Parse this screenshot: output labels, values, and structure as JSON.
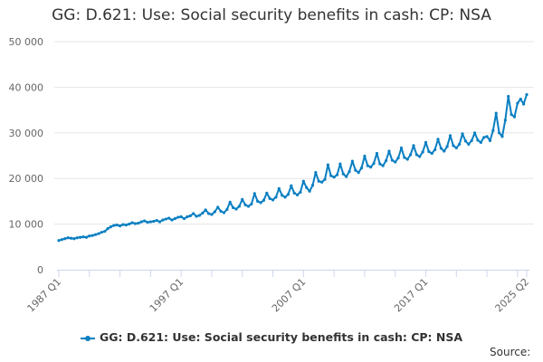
{
  "chart_data": {
    "type": "line",
    "title": "GG: D.621: Use: Social security benefits in cash: CP: NSA",
    "xlabel": "",
    "ylabel": "",
    "ylim": [
      0,
      50000
    ],
    "yticks": [
      "0",
      "10 000",
      "20 000",
      "30 000",
      "40 000",
      "50 000"
    ],
    "ytick_values": [
      0,
      10000,
      20000,
      30000,
      40000,
      50000
    ],
    "xtick_labels": [
      "1987 Q1",
      "1997 Q1",
      "2007 Q1",
      "2017 Q1",
      "2025 Q2"
    ],
    "x_start": "1987 Q1",
    "x_end": "2025 Q2",
    "grid": true,
    "legend_position": "bottom",
    "color": "#0a7fc2",
    "series": [
      {
        "name": "GG: D.621: Use: Social security benefits in cash: CP: NSA",
        "values": [
          6400,
          6600,
          6800,
          7000,
          6900,
          6800,
          7000,
          7100,
          7200,
          7100,
          7400,
          7500,
          7700,
          7900,
          8200,
          8400,
          9000,
          9400,
          9700,
          9800,
          9600,
          9900,
          9800,
          10000,
          10300,
          10100,
          10200,
          10500,
          10700,
          10400,
          10500,
          10600,
          10800,
          10500,
          10900,
          11100,
          11300,
          10900,
          11200,
          11500,
          11600,
          11200,
          11600,
          11800,
          12300,
          11700,
          11900,
          12400,
          13100,
          12300,
          12100,
          12700,
          13700,
          12800,
          12500,
          13200,
          14800,
          13600,
          13300,
          13900,
          15400,
          14200,
          13900,
          14400,
          16700,
          15000,
          14700,
          15200,
          16800,
          15600,
          15300,
          15900,
          17800,
          16300,
          15900,
          16500,
          18400,
          16800,
          16400,
          17000,
          19400,
          18000,
          17200,
          18500,
          21300,
          19400,
          19200,
          19800,
          23000,
          20600,
          20300,
          20800,
          23200,
          21000,
          20400,
          21500,
          23800,
          21800,
          21300,
          22300,
          24900,
          22800,
          22500,
          23300,
          25500,
          23200,
          22800,
          23900,
          26000,
          24000,
          23600,
          24500,
          26700,
          24600,
          24200,
          25200,
          27200,
          25200,
          24800,
          25800,
          27900,
          25900,
          25500,
          26300,
          28600,
          26600,
          26000,
          27000,
          29400,
          27200,
          26700,
          27500,
          29800,
          28200,
          27500,
          28300,
          30000,
          28400,
          27900,
          29000,
          29200,
          28300,
          30500,
          34300,
          30000,
          29200,
          32800,
          38000,
          34000,
          33500,
          36500,
          37400,
          36300,
          38400
        ]
      }
    ]
  },
  "source_label": "Source:"
}
